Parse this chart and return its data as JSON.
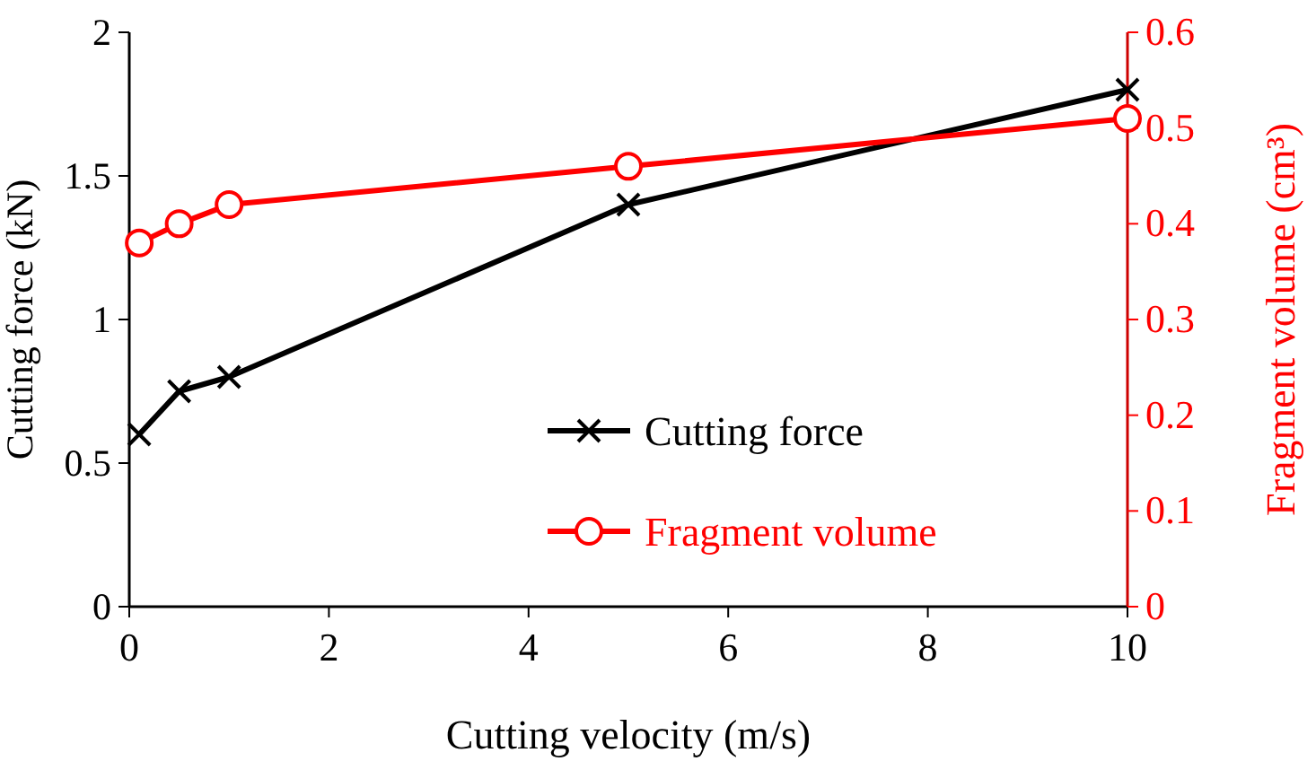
{
  "chart_data": {
    "type": "line",
    "xlabel": "Cutting velocity (m/s)",
    "ylabel": "Cutting force (kN)",
    "y2label": "Fragment volume (cm³)",
    "xlim": [
      0,
      10
    ],
    "xticks": [
      0,
      2,
      4,
      6,
      8,
      10
    ],
    "ylim": [
      0,
      2
    ],
    "yticks": [
      0,
      0.5,
      1,
      1.5,
      2
    ],
    "y2lim": [
      0,
      0.6
    ],
    "y2ticks": [
      0,
      0.1,
      0.2,
      0.3,
      0.4,
      0.5,
      0.6
    ],
    "grid": false,
    "legend": "bottom right",
    "series": [
      {
        "name": "Cutting force",
        "color": "#000000",
        "marker": "cross",
        "x": [
          0.1,
          0.5,
          1,
          5,
          10
        ],
        "values": [
          0.6,
          0.75,
          0.8,
          1.4,
          1.8
        ]
      },
      {
        "name": "Fragment volume",
        "color": "#ff0000",
        "marker": "circle",
        "axis": "y2",
        "x": [
          0.1,
          0.5,
          1,
          5,
          10
        ],
        "values": [
          0.38,
          0.4,
          0.42,
          0.46,
          0.51
        ]
      }
    ]
  }
}
